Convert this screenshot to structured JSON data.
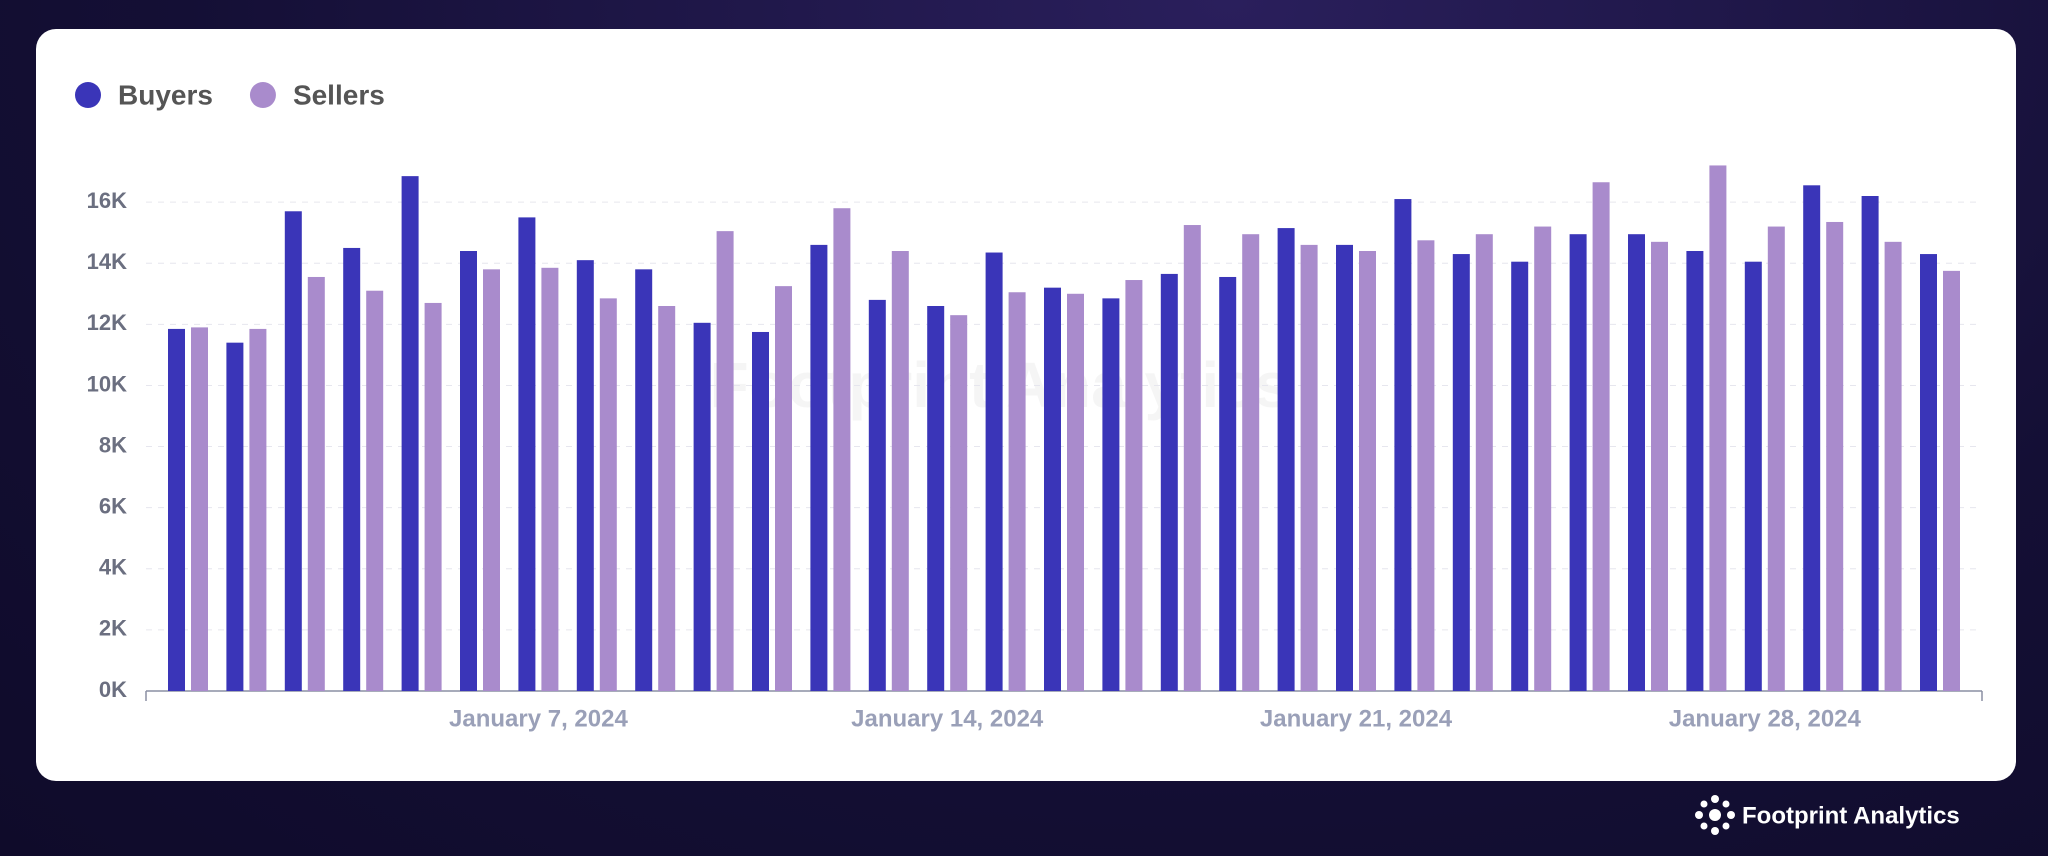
{
  "chart_data": {
    "type": "bar",
    "categories": [
      null,
      null,
      null,
      null,
      null,
      null,
      "January 7, 2024",
      null,
      null,
      null,
      null,
      null,
      null,
      "January 14, 2024",
      null,
      null,
      null,
      null,
      null,
      null,
      "January 21, 2024",
      null,
      null,
      null,
      null,
      null,
      null,
      "January 28, 2024",
      null,
      null,
      null
    ],
    "series": [
      {
        "name": "Buyers",
        "color": "#3a35b8",
        "values": [
          11850,
          11400,
          15700,
          14500,
          16850,
          14400,
          15500,
          14100,
          13800,
          12050,
          11750,
          14600,
          12800,
          12600,
          14350,
          13200,
          12850,
          13650,
          13550,
          15150,
          14600,
          16100,
          14300,
          14050,
          14950,
          14950,
          14400,
          14050,
          16550,
          16200,
          14300
        ]
      },
      {
        "name": "Sellers",
        "color": "#a98bcc",
        "values": [
          11900,
          11850,
          13550,
          13100,
          12700,
          13800,
          13850,
          12850,
          12600,
          15050,
          13250,
          15800,
          14400,
          12300,
          13050,
          13000,
          13450,
          15250,
          14950,
          14600,
          14400,
          14750,
          14950,
          15200,
          16650,
          14700,
          17200,
          15200,
          15350,
          14700,
          13750
        ]
      }
    ],
    "ylim": [
      0,
      18000
    ],
    "yticks": [
      {
        "value": 0,
        "label": "0K"
      },
      {
        "value": 2000,
        "label": "2K"
      },
      {
        "value": 4000,
        "label": "4K"
      },
      {
        "value": 6000,
        "label": "6K"
      },
      {
        "value": 8000,
        "label": "8K"
      },
      {
        "value": 10000,
        "label": "10K"
      },
      {
        "value": 12000,
        "label": "12K"
      },
      {
        "value": 14000,
        "label": "14K"
      },
      {
        "value": 16000,
        "label": "16K"
      }
    ],
    "grid": true,
    "legend": "top-left",
    "watermark": "Footprint Analytics"
  },
  "brand": "Footprint Analytics"
}
